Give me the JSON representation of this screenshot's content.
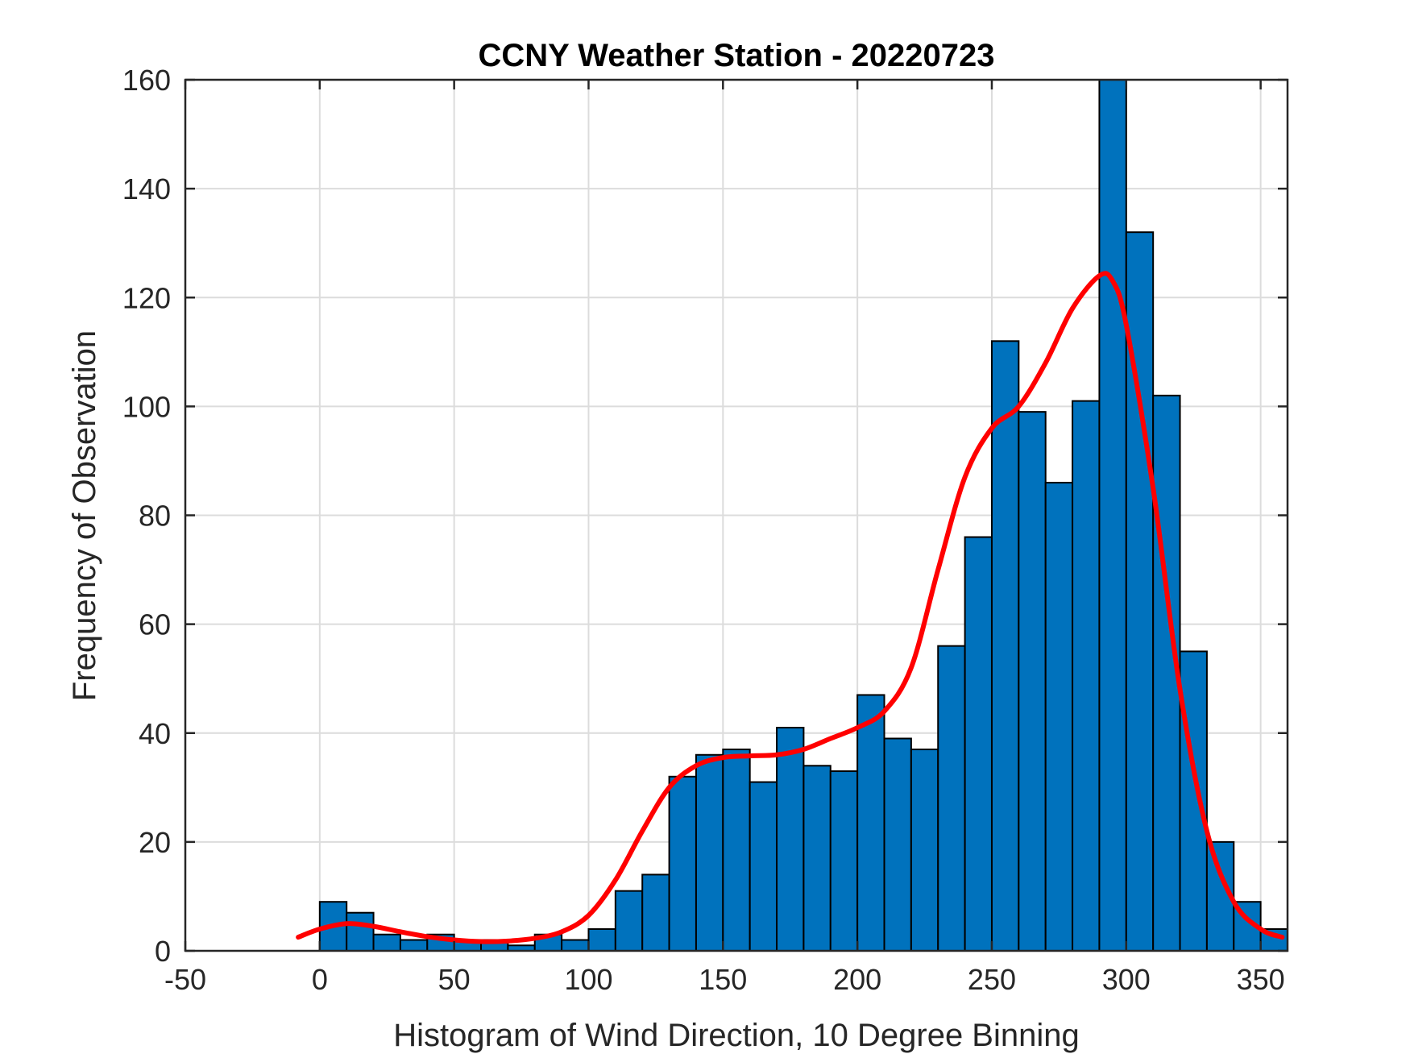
{
  "chart_data": {
    "type": "bar",
    "title": "CCNY Weather Station - 20220723",
    "xlabel": "Histogram of Wind Direction, 10 Degree Binning",
    "ylabel": "Frequency of Observation",
    "xlim": [
      -50,
      360
    ],
    "ylim": [
      0,
      160
    ],
    "xticks": [
      -50,
      0,
      50,
      100,
      150,
      200,
      250,
      300,
      350
    ],
    "yticks": [
      0,
      20,
      40,
      60,
      80,
      100,
      120,
      140,
      160
    ],
    "grid": true,
    "bin_width": 10,
    "bin_edges_start": 0,
    "values": [
      9,
      7,
      3,
      2,
      3,
      2,
      2,
      1,
      3,
      2,
      4,
      11,
      14,
      32,
      36,
      37,
      31,
      41,
      34,
      33,
      47,
      39,
      37,
      56,
      76,
      112,
      99,
      86,
      101,
      160,
      132,
      102,
      55,
      20,
      9,
      4
    ],
    "bar_color": "#0072BD",
    "fit_curve": {
      "color": "#FF0000",
      "x": [
        -8,
        0,
        10,
        20,
        30,
        40,
        50,
        60,
        70,
        80,
        90,
        100,
        110,
        120,
        130,
        140,
        150,
        160,
        170,
        180,
        190,
        200,
        210,
        220,
        230,
        240,
        250,
        260,
        270,
        280,
        290,
        295,
        300,
        310,
        320,
        330,
        340,
        350,
        358
      ],
      "y": [
        2.5,
        4,
        5,
        4.5,
        3.5,
        2.6,
        2,
        1.7,
        1.8,
        2.3,
        3.5,
        6.5,
        13,
        22,
        30,
        34,
        35.5,
        35.8,
        36,
        37,
        39,
        41,
        44,
        52,
        70,
        87,
        96,
        100,
        108,
        118,
        124,
        123,
        115,
        85,
        48,
        22,
        9,
        4,
        2.5
      ]
    }
  }
}
